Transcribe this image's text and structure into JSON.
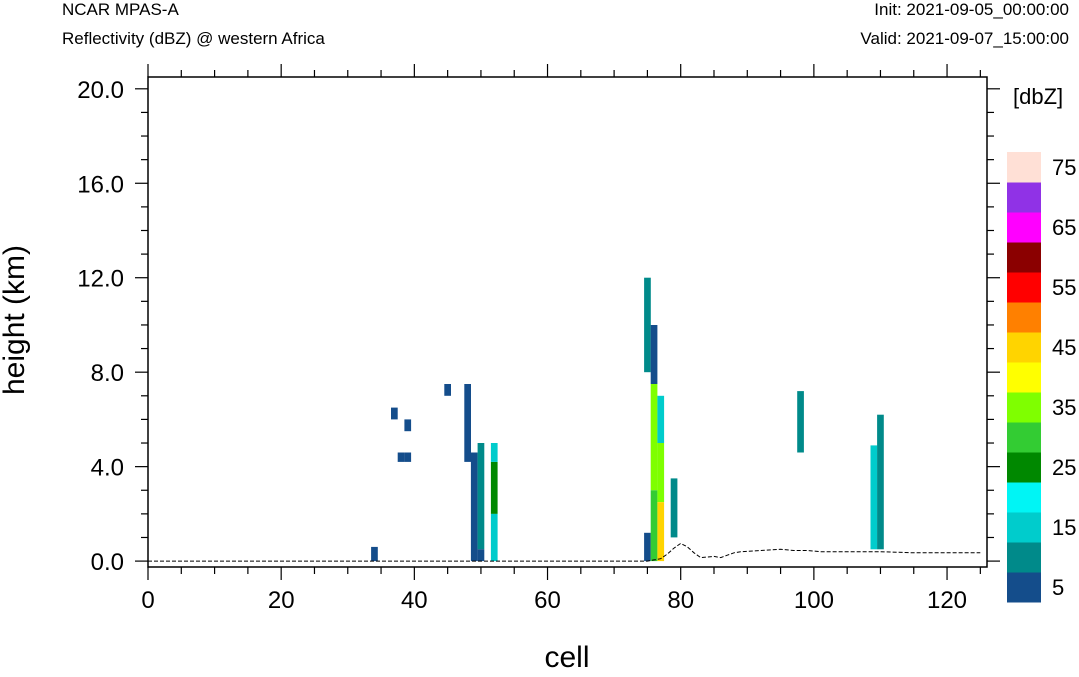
{
  "header": {
    "model": "NCAR MPAS-A",
    "subtitle": "Reflectivity (dBZ) @ western Africa",
    "init": "Init: 2021-09-05_00:00:00",
    "valid": "Valid: 2021-09-07_15:00:00"
  },
  "chart_data": {
    "type": "heatmap",
    "title": "Reflectivity (dBZ) @ western Africa",
    "xlabel": "cell",
    "ylabel": "height (km)",
    "xlim": [
      0,
      126
    ],
    "ylim": [
      -0.25,
      20.5
    ],
    "x_ticks": [
      0,
      20,
      40,
      60,
      80,
      100,
      120
    ],
    "y_ticks": [
      "0.0",
      "4.0",
      "8.0",
      "12.0",
      "16.0",
      "20.0"
    ],
    "grid": false,
    "colorbar": {
      "label": "[dbZ]",
      "levels": [
        5,
        10,
        15,
        20,
        25,
        30,
        35,
        40,
        45,
        50,
        55,
        60,
        65,
        70,
        75
      ],
      "tick_labels": [
        "5",
        "15",
        "25",
        "35",
        "45",
        "55",
        "65",
        "75"
      ],
      "colors": [
        "#144d8b",
        "#008a8a",
        "#00cccc",
        "#00f5f5",
        "#008800",
        "#33cc33",
        "#7fff00",
        "#ffff00",
        "#ffd400",
        "#ff8000",
        "#ff0000",
        "#8b0000",
        "#ff00ff",
        "#9032e6",
        "#ffe0d6"
      ]
    },
    "cells": [
      {
        "x": 34,
        "y0": 0.0,
        "y1": 0.6,
        "dbz": 5
      },
      {
        "x": 37,
        "y0": 6.0,
        "y1": 6.5,
        "dbz": 5
      },
      {
        "x": 38,
        "y0": 4.2,
        "y1": 4.6,
        "dbz": 5
      },
      {
        "x": 39,
        "y0": 4.2,
        "y1": 4.6,
        "dbz": 5
      },
      {
        "x": 39,
        "y0": 5.5,
        "y1": 6.0,
        "dbz": 5
      },
      {
        "x": 45,
        "y0": 7.0,
        "y1": 7.5,
        "dbz": 5
      },
      {
        "x": 48,
        "y0": 4.2,
        "y1": 7.5,
        "dbz": 5
      },
      {
        "x": 49,
        "y0": 0.0,
        "y1": 4.6,
        "dbz": 5
      },
      {
        "x": 50,
        "y0": 0.5,
        "y1": 5.0,
        "dbz": 10
      },
      {
        "x": 50,
        "y0": 0.0,
        "y1": 0.5,
        "dbz": 5
      },
      {
        "x": 52,
        "y0": 2.0,
        "y1": 4.2,
        "dbz": 25
      },
      {
        "x": 52,
        "y0": 4.2,
        "y1": 5.0,
        "dbz": 15
      },
      {
        "x": 52,
        "y0": 0.0,
        "y1": 2.0,
        "dbz": 15
      },
      {
        "x": 75,
        "y0": 8.0,
        "y1": 12.0,
        "dbz": 10
      },
      {
        "x": 75,
        "y0": 0.0,
        "y1": 1.2,
        "dbz": 5
      },
      {
        "x": 76,
        "y0": 7.5,
        "y1": 10.0,
        "dbz": 5
      },
      {
        "x": 76,
        "y0": 3.0,
        "y1": 7.5,
        "dbz": 35
      },
      {
        "x": 76,
        "y0": 0.0,
        "y1": 3.0,
        "dbz": 30
      },
      {
        "x": 77,
        "y0": 0.0,
        "y1": 2.5,
        "dbz": 45
      },
      {
        "x": 77,
        "y0": 2.5,
        "y1": 5.0,
        "dbz": 35
      },
      {
        "x": 77,
        "y0": 5.0,
        "y1": 7.0,
        "dbz": 15
      },
      {
        "x": 79,
        "y0": 1.0,
        "y1": 3.5,
        "dbz": 10
      },
      {
        "x": 98,
        "y0": 4.6,
        "y1": 7.2,
        "dbz": 10
      },
      {
        "x": 109,
        "y0": 0.5,
        "y1": 4.9,
        "dbz": 15
      },
      {
        "x": 110,
        "y0": 0.5,
        "y1": 6.2,
        "dbz": 10
      }
    ],
    "terrain": {
      "x": [
        0,
        75,
        76,
        77,
        78,
        79,
        80,
        81,
        82,
        83,
        85,
        86,
        87,
        88,
        89,
        92,
        95,
        97,
        99,
        101,
        105,
        110,
        115,
        120,
        125
      ],
      "y": [
        0.0,
        0.0,
        0.05,
        0.1,
        0.3,
        0.55,
        0.75,
        0.6,
        0.35,
        0.15,
        0.2,
        0.15,
        0.25,
        0.35,
        0.4,
        0.45,
        0.5,
        0.45,
        0.45,
        0.4,
        0.4,
        0.4,
        0.35,
        0.35,
        0.35
      ]
    }
  }
}
